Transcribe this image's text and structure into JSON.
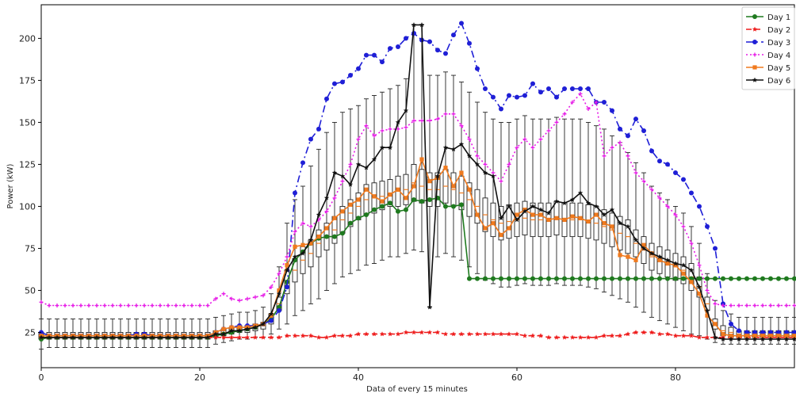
{
  "chart_data": {
    "type": "line",
    "title": "",
    "xlabel": "Data of every 15 minutes",
    "ylabel": "Power (kW)",
    "xlim": [
      0,
      95
    ],
    "ylim": [
      4,
      220
    ],
    "xticks": [
      0,
      20,
      40,
      60,
      80
    ],
    "yticks": [
      25,
      50,
      75,
      100,
      125,
      150,
      175,
      200
    ],
    "grid": false,
    "legend_position": "top-right",
    "series": [
      {
        "name": "Day 1",
        "color": "#1f7a1f",
        "dash": "solid",
        "marker": "dot",
        "values": [
          21,
          22,
          22,
          22,
          22,
          22,
          22,
          22,
          22,
          22,
          22,
          22,
          22,
          22,
          22,
          22,
          22,
          22,
          22,
          22,
          22,
          22,
          23,
          24,
          25,
          26,
          27,
          28,
          30,
          33,
          40,
          55,
          68,
          73,
          78,
          81,
          82,
          82,
          84,
          90,
          93,
          95,
          98,
          100,
          102,
          97,
          98,
          104,
          103,
          104,
          105,
          100,
          100,
          101,
          57,
          57,
          57,
          57,
          57,
          57,
          57,
          57,
          57,
          57,
          57,
          57,
          57,
          57,
          57,
          57,
          57,
          57,
          57,
          57,
          57,
          57,
          57,
          57,
          57,
          57,
          57,
          57,
          57,
          57,
          57,
          57,
          57,
          57,
          57,
          57,
          57,
          57,
          57,
          57,
          57,
          57
        ]
      },
      {
        "name": "Day 2",
        "color": "#ee1c1c",
        "dash": "dashed",
        "marker": "star",
        "values": [
          22,
          22,
          22,
          22,
          22,
          22,
          22,
          22,
          22,
          22,
          22,
          22,
          22,
          22,
          22,
          22,
          22,
          22,
          22,
          22,
          22,
          22,
          22,
          22,
          22,
          22,
          22,
          22,
          22,
          22,
          22,
          23,
          23,
          23,
          23,
          22,
          22,
          23,
          23,
          23,
          24,
          24,
          24,
          24,
          24,
          24,
          25,
          25,
          25,
          25,
          25,
          24,
          24,
          24,
          24,
          24,
          24,
          24,
          24,
          24,
          24,
          23,
          23,
          23,
          22,
          22,
          22,
          22,
          22,
          22,
          22,
          23,
          23,
          23,
          24,
          25,
          25,
          25,
          24,
          24,
          23,
          23,
          23,
          22,
          22,
          22,
          22,
          22,
          22,
          22,
          22,
          22,
          22,
          22,
          22,
          22
        ]
      },
      {
        "name": "Day 3",
        "color": "#1f1fd6",
        "dash": "dashdot",
        "marker": "dot",
        "values": [
          25,
          23,
          23,
          23,
          23,
          23,
          23,
          23,
          23,
          23,
          23,
          23,
          24,
          24,
          23,
          23,
          23,
          23,
          23,
          23,
          23,
          23,
          25,
          27,
          28,
          29,
          29,
          29,
          30,
          32,
          38,
          52,
          108,
          126,
          140,
          146,
          164,
          173,
          174,
          178,
          182,
          190,
          190,
          186,
          194,
          195,
          200,
          203,
          199,
          198,
          193,
          191,
          202,
          209,
          197,
          182,
          170,
          165,
          158,
          166,
          165,
          166,
          173,
          168,
          170,
          165,
          170,
          170,
          170,
          170,
          162,
          162,
          157,
          146,
          142,
          152,
          145,
          133,
          127,
          125,
          120,
          116,
          108,
          100,
          88,
          75,
          42,
          30,
          26,
          25,
          25,
          25,
          25,
          25,
          25,
          25
        ]
      },
      {
        "name": "Day 4",
        "color": "#e61ae6",
        "dash": "dotted",
        "marker": "plus",
        "values": [
          43,
          41,
          41,
          41,
          41,
          41,
          41,
          41,
          41,
          41,
          41,
          41,
          41,
          41,
          41,
          41,
          41,
          41,
          41,
          41,
          41,
          41,
          45,
          48,
          45,
          44,
          45,
          46,
          47,
          52,
          60,
          70,
          85,
          90,
          88,
          92,
          97,
          105,
          115,
          125,
          140,
          148,
          142,
          145,
          146,
          146,
          147,
          151,
          151,
          151,
          152,
          155,
          155,
          148,
          140,
          130,
          125,
          120,
          115,
          125,
          135,
          140,
          135,
          140,
          145,
          150,
          155,
          162,
          167,
          158,
          162,
          130,
          135,
          138,
          130,
          120,
          115,
          110,
          105,
          100,
          95,
          88,
          78,
          65,
          50,
          42,
          41,
          41,
          41,
          41,
          41,
          41,
          41,
          41,
          41,
          41
        ]
      },
      {
        "name": "Day 5",
        "color": "#f07a1e",
        "dash": "solid",
        "marker": "square",
        "values": [
          23,
          23,
          23,
          23,
          23,
          23,
          23,
          23,
          23,
          23,
          23,
          23,
          23,
          23,
          23,
          23,
          23,
          23,
          23,
          23,
          23,
          23,
          25,
          27,
          28,
          28,
          28,
          29,
          30,
          35,
          50,
          65,
          76,
          77,
          78,
          82,
          87,
          93,
          97,
          101,
          104,
          110,
          106,
          103,
          107,
          110,
          105,
          112,
          128,
          115,
          117,
          123,
          112,
          120,
          110,
          95,
          87,
          90,
          83,
          87,
          95,
          98,
          95,
          95,
          92,
          93,
          92,
          94,
          93,
          91,
          95,
          90,
          88,
          71,
          70,
          68,
          77,
          72,
          68,
          66,
          65,
          60,
          55,
          48,
          35,
          30,
          24,
          23,
          23,
          23,
          23,
          23,
          23,
          23,
          23,
          23
        ]
      },
      {
        "name": "Day 6",
        "color": "#111111",
        "dash": "solid",
        "marker": "star",
        "values": [
          22,
          22,
          22,
          22,
          22,
          22,
          22,
          22,
          22,
          22,
          22,
          22,
          22,
          22,
          22,
          22,
          22,
          22,
          22,
          22,
          22,
          22,
          24,
          24,
          26,
          26,
          27,
          28,
          30,
          36,
          48,
          62,
          70,
          72,
          80,
          95,
          105,
          120,
          118,
          113,
          125,
          123,
          128,
          135,
          135,
          150,
          157,
          208,
          208,
          40,
          118,
          135,
          134,
          137,
          130,
          125,
          120,
          118,
          93,
          100,
          92,
          97,
          100,
          98,
          96,
          103,
          102,
          104,
          108,
          102,
          100,
          95,
          98,
          90,
          88,
          80,
          75,
          72,
          70,
          68,
          66,
          65,
          62,
          52,
          38,
          22,
          21,
          21,
          21,
          21,
          21,
          21,
          21,
          21,
          21,
          21
        ]
      }
    ],
    "boxplots": {
      "x": [
        0,
        1,
        2,
        3,
        4,
        5,
        6,
        7,
        8,
        9,
        10,
        11,
        12,
        13,
        14,
        15,
        16,
        17,
        18,
        19,
        20,
        21,
        22,
        23,
        24,
        25,
        26,
        27,
        28,
        29,
        30,
        31,
        32,
        33,
        34,
        35,
        36,
        37,
        38,
        39,
        40,
        41,
        42,
        43,
        44,
        45,
        46,
        47,
        48,
        49,
        50,
        51,
        52,
        53,
        54,
        55,
        56,
        57,
        58,
        59,
        60,
        61,
        62,
        63,
        64,
        65,
        66,
        67,
        68,
        69,
        70,
        71,
        72,
        73,
        74,
        75,
        76,
        77,
        78,
        79,
        80,
        81,
        82,
        83,
        84,
        85,
        86,
        87,
        88,
        89,
        90,
        91,
        92,
        93,
        94,
        95
      ],
      "median": [
        23,
        23,
        23,
        23,
        23,
        23,
        23,
        23,
        23,
        23,
        23,
        23,
        23,
        23,
        23,
        23,
        23,
        23,
        23,
        23,
        23,
        23,
        24,
        25,
        26,
        27,
        27,
        28,
        29,
        33,
        42,
        55,
        62,
        68,
        72,
        78,
        82,
        86,
        92,
        96,
        100,
        104,
        105,
        106,
        108,
        109,
        110,
        114,
        112,
        110,
        110,
        112,
        110,
        108,
        104,
        100,
        95,
        92,
        90,
        91,
        92,
        93,
        92,
        92,
        92,
        93,
        92,
        92,
        92,
        91,
        90,
        88,
        86,
        84,
        82,
        78,
        74,
        70,
        68,
        66,
        64,
        62,
        58,
        52,
        42,
        30,
        26,
        25,
        24,
        24,
        24,
        24,
        24,
        24,
        24,
        24
      ],
      "q1": [
        21,
        21,
        21,
        21,
        21,
        21,
        21,
        21,
        21,
        21,
        21,
        21,
        21,
        21,
        21,
        21,
        21,
        21,
        21,
        21,
        21,
        21,
        22,
        23,
        24,
        25,
        25,
        26,
        27,
        30,
        38,
        48,
        55,
        60,
        64,
        70,
        74,
        78,
        84,
        88,
        92,
        95,
        96,
        98,
        100,
        100,
        101,
        103,
        102,
        100,
        100,
        102,
        100,
        98,
        94,
        90,
        85,
        82,
        80,
        81,
        82,
        83,
        82,
        82,
        82,
        83,
        82,
        82,
        82,
        81,
        80,
        78,
        76,
        74,
        72,
        70,
        66,
        62,
        60,
        58,
        56,
        54,
        50,
        46,
        38,
        27,
        23,
        22,
        22,
        22,
        22,
        22,
        22,
        22,
        22,
        22
      ],
      "q3": [
        25,
        25,
        25,
        25,
        25,
        25,
        25,
        25,
        25,
        25,
        25,
        25,
        25,
        25,
        25,
        25,
        25,
        25,
        25,
        25,
        25,
        25,
        26,
        27,
        28,
        29,
        29,
        30,
        31,
        36,
        46,
        62,
        69,
        76,
        80,
        86,
        90,
        94,
        100,
        104,
        108,
        113,
        114,
        115,
        116,
        118,
        119,
        125,
        122,
        120,
        120,
        122,
        120,
        118,
        114,
        110,
        105,
        102,
        100,
        101,
        102,
        103,
        102,
        102,
        102,
        103,
        102,
        102,
        102,
        101,
        100,
        98,
        96,
        94,
        92,
        86,
        82,
        78,
        76,
        74,
        72,
        70,
        66,
        58,
        46,
        33,
        29,
        28,
        26,
        26,
        26,
        26,
        26,
        26,
        26,
        26
      ],
      "low": [
        15,
        16,
        16,
        16,
        16,
        16,
        16,
        16,
        16,
        16,
        16,
        16,
        16,
        16,
        16,
        16,
        16,
        16,
        16,
        16,
        16,
        16,
        18,
        19,
        20,
        21,
        21,
        22,
        22,
        24,
        27,
        30,
        35,
        38,
        42,
        45,
        50,
        54,
        58,
        60,
        62,
        65,
        66,
        68,
        70,
        70,
        72,
        74,
        73,
        40,
        70,
        72,
        70,
        68,
        64,
        60,
        56,
        54,
        52,
        52,
        53,
        54,
        53,
        53,
        53,
        54,
        53,
        53,
        53,
        52,
        51,
        49,
        47,
        45,
        43,
        40,
        37,
        34,
        32,
        30,
        28,
        26,
        24,
        23,
        21,
        19,
        18,
        18,
        18,
        18,
        18,
        18,
        18,
        18,
        18,
        18
      ],
      "high": [
        33,
        33,
        33,
        33,
        33,
        33,
        33,
        33,
        33,
        33,
        33,
        33,
        33,
        33,
        33,
        33,
        33,
        33,
        33,
        33,
        33,
        33,
        34,
        35,
        36,
        37,
        37,
        38,
        40,
        48,
        64,
        90,
        104,
        112,
        124,
        134,
        144,
        150,
        156,
        158,
        160,
        164,
        166,
        168,
        170,
        172,
        176,
        208,
        208,
        178,
        178,
        180,
        178,
        174,
        168,
        162,
        156,
        152,
        150,
        150,
        152,
        154,
        152,
        152,
        152,
        153,
        152,
        152,
        152,
        150,
        148,
        146,
        142,
        138,
        132,
        126,
        120,
        112,
        108,
        104,
        100,
        96,
        88,
        78,
        60,
        44,
        38,
        36,
        34,
        34,
        34,
        34,
        34,
        34,
        34,
        34
      ]
    }
  }
}
